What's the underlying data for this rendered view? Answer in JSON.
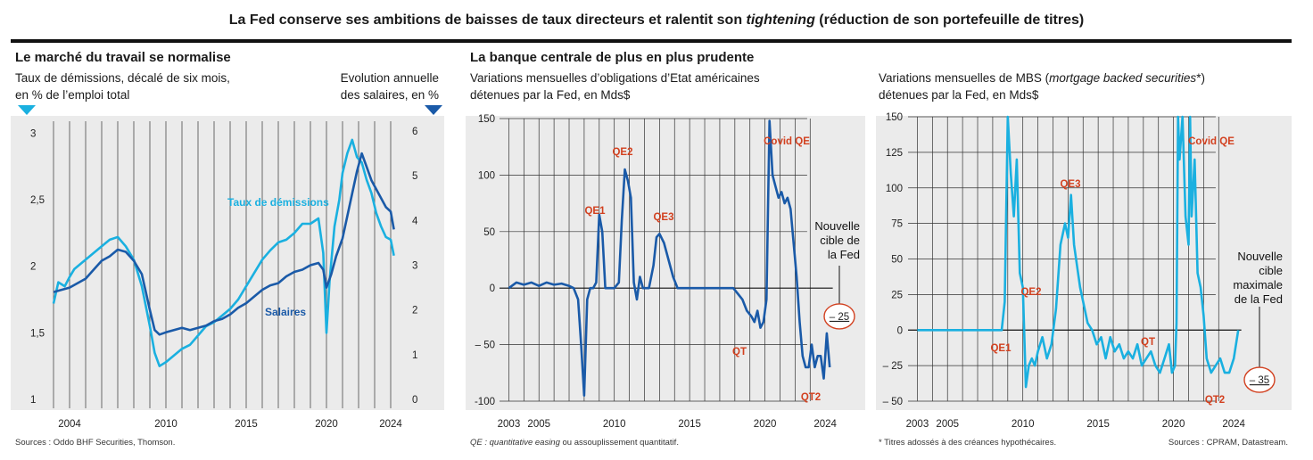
{
  "header": {
    "title_a": "La Fed conserve ses ambitions de baisses de taux directeurs et ralentit son ",
    "title_em": "tightening",
    "title_b": " (réduction de son portefeuille de titres)"
  },
  "panels": {
    "labor": {
      "title": "Le marché du travail se normalise",
      "left_sub_1": "Taux de démissions, décalé de six mois,",
      "left_sub_2": "en % de l’emploi total",
      "right_sub_1": "Evolution annuelle",
      "right_sub_2": "des salaires, en %",
      "source": "Sources : Oddo BHF Securities, Thomson."
    },
    "fed": {
      "title": "La banque centrale de plus en plus prudente",
      "treas_sub_1": "Variations mensuelles d’obligations d’Etat américaines",
      "treas_sub_2": "détenues par la Fed, en Mds$",
      "mbs_sub_1a": "Variations mensuelles de MBS (",
      "mbs_sub_1em": "mortgage backed securities",
      "mbs_sub_1b": "*)",
      "mbs_sub_2": "détenues par la Fed, en Mds$",
      "note_em": "QE : quantitative easing",
      "note_rest": " ou assouplissement quantitatif.",
      "footnote": "* Titres adossés à des créances hypothécaires.",
      "source": "Sources : CPRAM, Datastream."
    }
  },
  "chart_data": [
    {
      "type": "line",
      "x_ticks": [
        "2004",
        "2010",
        "2015",
        "2020",
        "2024"
      ],
      "xlim": [
        2003,
        2025
      ],
      "left_axis": {
        "ticks": [
          "1",
          "1,5",
          "2",
          "2,5",
          "3"
        ],
        "ylim": [
          1,
          3.05
        ]
      },
      "right_axis": {
        "ticks": [
          "0",
          "1",
          "2",
          "3",
          "4",
          "5",
          "6"
        ],
        "ylim": [
          0,
          6.1
        ]
      },
      "series": [
        {
          "name": "Taux de démissions",
          "axis": "left",
          "color": "#1ab0e0",
          "x": [
            2003.0,
            2003.3,
            2003.7,
            2004.0,
            2004.3,
            2004.7,
            2005.0,
            2005.5,
            2006.0,
            2006.5,
            2007.0,
            2007.5,
            2008.0,
            2008.5,
            2009.0,
            2009.3,
            2009.6,
            2010.0,
            2010.5,
            2011.0,
            2011.5,
            2012.0,
            2012.5,
            2013.0,
            2013.5,
            2014.0,
            2014.5,
            2015.0,
            2015.5,
            2016.0,
            2016.5,
            2017.0,
            2017.5,
            2018.0,
            2018.5,
            2019.0,
            2019.5,
            2019.8,
            2020.0,
            2020.2,
            2020.5,
            2020.8,
            2021.0,
            2021.3,
            2021.6,
            2021.9,
            2022.2,
            2022.5,
            2022.8,
            2023.1,
            2023.4,
            2023.7,
            2024.0,
            2024.2
          ],
          "values": [
            1.72,
            1.88,
            1.85,
            1.92,
            1.98,
            2.02,
            2.05,
            2.1,
            2.15,
            2.2,
            2.22,
            2.15,
            2.05,
            1.85,
            1.55,
            1.35,
            1.25,
            1.28,
            1.33,
            1.38,
            1.41,
            1.48,
            1.55,
            1.58,
            1.63,
            1.68,
            1.75,
            1.85,
            1.95,
            2.05,
            2.12,
            2.18,
            2.2,
            2.25,
            2.32,
            2.32,
            2.36,
            2.1,
            1.5,
            1.9,
            2.3,
            2.5,
            2.7,
            2.85,
            2.95,
            2.82,
            2.78,
            2.65,
            2.55,
            2.4,
            2.3,
            2.22,
            2.2,
            2.08
          ]
        },
        {
          "name": "Salaires",
          "axis": "right",
          "color": "#1a5aa8",
          "x": [
            2003.0,
            2003.5,
            2004.0,
            2004.5,
            2005.0,
            2005.5,
            2006.0,
            2006.5,
            2007.0,
            2007.5,
            2008.0,
            2008.5,
            2009.0,
            2009.3,
            2009.6,
            2010.0,
            2010.5,
            2011.0,
            2011.5,
            2012.0,
            2012.5,
            2013.0,
            2013.5,
            2014.0,
            2014.5,
            2015.0,
            2015.5,
            2016.0,
            2016.5,
            2017.0,
            2017.5,
            2018.0,
            2018.5,
            2019.0,
            2019.5,
            2019.8,
            2020.0,
            2020.3,
            2020.6,
            2021.0,
            2021.3,
            2021.6,
            2021.9,
            2022.2,
            2022.5,
            2022.8,
            2023.1,
            2023.4,
            2023.7,
            2024.0,
            2024.2
          ],
          "values": [
            2.4,
            2.45,
            2.5,
            2.6,
            2.7,
            2.9,
            3.1,
            3.2,
            3.35,
            3.3,
            3.1,
            2.8,
            2.0,
            1.55,
            1.45,
            1.5,
            1.55,
            1.6,
            1.55,
            1.6,
            1.65,
            1.75,
            1.8,
            1.9,
            2.05,
            2.15,
            2.3,
            2.45,
            2.55,
            2.6,
            2.75,
            2.85,
            2.9,
            3.0,
            3.05,
            2.9,
            2.5,
            2.8,
            3.2,
            3.6,
            4.1,
            4.6,
            5.1,
            5.5,
            5.2,
            4.9,
            4.7,
            4.5,
            4.3,
            4.2,
            3.8
          ]
        }
      ],
      "legend": [
        "Taux de démissions",
        "Salaires"
      ]
    },
    {
      "type": "line",
      "x_ticks": [
        "2003",
        "2005",
        "2010",
        "2015",
        "2020",
        "2024"
      ],
      "xlim": [
        2002.5,
        2024.7
      ],
      "y_ticks": [
        "150",
        "100",
        "50",
        "0",
        "– 50",
        "-100"
      ],
      "ylim": [
        -100,
        150
      ],
      "grid": "vertical yearly + horizontal at 50 steps",
      "annotations": [
        "QE1",
        "QE2",
        "QE3",
        "QT",
        "Covid QE",
        "QT2"
      ],
      "target_label_1": "Nouvelle",
      "target_label_2": "cible de",
      "target_label_3": "la Fed",
      "target_value": "– 25",
      "target": -25,
      "series": [
        {
          "color": "#1a5aa8",
          "x": [
            2003.0,
            2003.5,
            2004.0,
            2004.5,
            2005.0,
            2005.5,
            2006.0,
            2006.5,
            2007.0,
            2007.3,
            2007.6,
            2007.8,
            2008.0,
            2008.2,
            2008.4,
            2008.6,
            2008.8,
            2009.0,
            2009.2,
            2009.4,
            2009.6,
            2009.8,
            2010.0,
            2010.3,
            2010.5,
            2010.7,
            2010.9,
            2011.1,
            2011.3,
            2011.5,
            2011.7,
            2011.9,
            2012.1,
            2012.3,
            2012.6,
            2012.8,
            2013.0,
            2013.3,
            2013.6,
            2013.9,
            2014.2,
            2014.5,
            2014.8,
            2015.0,
            2016.0,
            2017.0,
            2017.9,
            2018.2,
            2018.5,
            2018.8,
            2019.1,
            2019.3,
            2019.5,
            2019.7,
            2019.9,
            2020.1,
            2020.2,
            2020.3,
            2020.5,
            2020.7,
            2020.9,
            2021.1,
            2021.3,
            2021.5,
            2021.7,
            2021.9,
            2022.1,
            2022.3,
            2022.5,
            2022.7,
            2022.9,
            2023.1,
            2023.3,
            2023.5,
            2023.7,
            2023.9,
            2024.1,
            2024.3
          ],
          "values": [
            0,
            5,
            3,
            5,
            2,
            5,
            3,
            4,
            2,
            0,
            -10,
            -50,
            -95,
            -10,
            0,
            0,
            5,
            65,
            50,
            0,
            0,
            0,
            0,
            5,
            60,
            105,
            95,
            80,
            5,
            -10,
            10,
            0,
            0,
            0,
            20,
            45,
            48,
            40,
            25,
            10,
            0,
            0,
            0,
            0,
            0,
            0,
            0,
            -5,
            -10,
            -20,
            -25,
            -30,
            -20,
            -35,
            -30,
            -10,
            70,
            148,
            100,
            90,
            80,
            85,
            75,
            80,
            70,
            40,
            10,
            -30,
            -60,
            -70,
            -70,
            -50,
            -70,
            -60,
            -60,
            -80,
            -40,
            -70
          ]
        }
      ]
    },
    {
      "type": "line",
      "x_ticks": [
        "2003",
        "2005",
        "2010",
        "2015",
        "2020",
        "2024"
      ],
      "xlim": [
        2002.5,
        2024.7
      ],
      "y_ticks": [
        "150",
        "125",
        "100",
        "75",
        "50",
        "25",
        "0",
        "– 25",
        "– 50"
      ],
      "ylim": [
        -50,
        150
      ],
      "grid": "vertical yearly + horizontal at 25 steps",
      "annotations": [
        "QE1",
        "QE2",
        "QE3",
        "QT",
        "Covid QE",
        "QT2"
      ],
      "target_label_1": "Nouvelle",
      "target_label_2": "cible",
      "target_label_3": "maximale",
      "target_label_4": "de la Fed",
      "target_value": "– 35",
      "target": -35,
      "series": [
        {
          "color": "#1ab0e0",
          "x": [
            2003.0,
            2005.0,
            2007.0,
            2008.6,
            2008.8,
            2009.0,
            2009.2,
            2009.4,
            2009.6,
            2009.8,
            2010.0,
            2010.2,
            2010.4,
            2010.6,
            2010.8,
            2011.0,
            2011.3,
            2011.6,
            2011.9,
            2012.2,
            2012.5,
            2012.8,
            2013.0,
            2013.2,
            2013.4,
            2013.6,
            2013.8,
            2014.0,
            2014.3,
            2014.6,
            2014.9,
            2015.2,
            2015.5,
            2015.8,
            2016.1,
            2016.4,
            2016.7,
            2017.0,
            2017.3,
            2017.6,
            2017.9,
            2018.2,
            2018.5,
            2018.8,
            2019.1,
            2019.4,
            2019.7,
            2019.9,
            2020.1,
            2020.2,
            2020.3,
            2020.4,
            2020.6,
            2020.8,
            2021.0,
            2021.1,
            2021.2,
            2021.4,
            2021.6,
            2021.8,
            2022.0,
            2022.2,
            2022.5,
            2022.8,
            2023.1,
            2023.4,
            2023.7,
            2024.0,
            2024.3
          ],
          "values": [
            0,
            0,
            0,
            0,
            20,
            150,
            110,
            80,
            120,
            40,
            30,
            -40,
            -25,
            -20,
            -25,
            -15,
            -5,
            -20,
            -10,
            15,
            60,
            75,
            65,
            95,
            60,
            45,
            30,
            20,
            5,
            0,
            -10,
            -5,
            -20,
            -5,
            -15,
            -10,
            -20,
            -15,
            -20,
            -10,
            -25,
            -20,
            -15,
            -25,
            -30,
            -20,
            -10,
            -30,
            -25,
            5,
            150,
            120,
            150,
            80,
            60,
            150,
            80,
            120,
            40,
            30,
            10,
            -20,
            -30,
            -25,
            -20,
            -30,
            -30,
            -20,
            0
          ]
        }
      ]
    }
  ]
}
